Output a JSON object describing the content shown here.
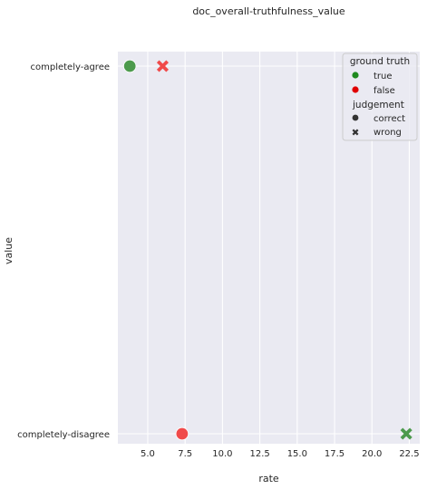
{
  "chart_data": {
    "type": "scatter",
    "title": "doc_overall-truthfulness_value",
    "xlabel": "rate",
    "ylabel": "value",
    "xlim": [
      3.0,
      23.2
    ],
    "x_ticks": [
      "5.0",
      "7.5",
      "10.0",
      "12.5",
      "15.0",
      "17.5",
      "20.0",
      "22.5"
    ],
    "y_categories": [
      "completely-agree",
      "completely-disagree"
    ],
    "grid": true,
    "legend_position": "top-right",
    "legend": {
      "hue_title": "ground truth",
      "hue_items": [
        {
          "label": "true",
          "color": "#1f8a1f"
        },
        {
          "label": "false",
          "color": "#e00000"
        }
      ],
      "style_title": "judgement",
      "style_items": [
        {
          "label": "correct",
          "marker": "circle"
        },
        {
          "label": "wrong",
          "marker": "x"
        }
      ]
    },
    "points": [
      {
        "x": 3.8,
        "y": "completely-agree",
        "ground_truth": "true",
        "judgement": "correct"
      },
      {
        "x": 6.0,
        "y": "completely-agree",
        "ground_truth": "false",
        "judgement": "wrong"
      },
      {
        "x": 7.3,
        "y": "completely-disagree",
        "ground_truth": "false",
        "judgement": "correct"
      },
      {
        "x": 22.3,
        "y": "completely-disagree",
        "ground_truth": "true",
        "judgement": "wrong"
      }
    ],
    "colors": {
      "background": "#eaeaf2",
      "grid": "#ffffff",
      "true_point": "#4c9a4c",
      "false_point": "#f04a4a",
      "legend_marker_dark": "#333333"
    }
  }
}
